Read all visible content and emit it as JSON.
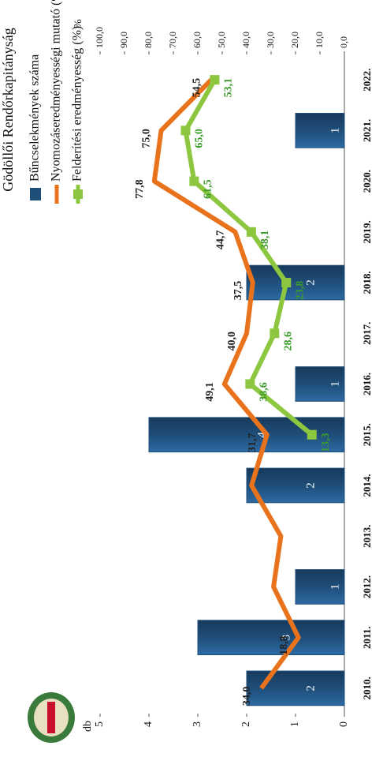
{
  "chart_data": {
    "type": "bar-line",
    "title": "Gödöllői Rendőrkapitányság",
    "categories": [
      "2010.",
      "2011.",
      "2012.",
      "2013.",
      "2014.",
      "2015.",
      "2016.",
      "2017.",
      "2018.",
      "2019.",
      "2020.",
      "2021.",
      "2022."
    ],
    "y_label": "db",
    "y2_label": "%",
    "ylim": [
      0,
      5
    ],
    "yticks": [
      0,
      1,
      2,
      3,
      4,
      5
    ],
    "y2lim": [
      0,
      100
    ],
    "y2ticks": [
      {
        "value": 0,
        "label": "0,0"
      },
      {
        "value": 10,
        "label": "10,0"
      },
      {
        "value": 20,
        "label": "20,0"
      },
      {
        "value": 30,
        "label": "30,0"
      },
      {
        "value": 40,
        "label": "40,0"
      },
      {
        "value": 50,
        "label": "50,0"
      },
      {
        "value": 60,
        "label": "60,0"
      },
      {
        "value": 70,
        "label": "70,0"
      },
      {
        "value": 80,
        "label": "80,0"
      },
      {
        "value": 90,
        "label": "90,0"
      },
      {
        "value": 100,
        "label": "100,0"
      }
    ],
    "series": [
      {
        "name": "Bűncselekmények száma",
        "type": "bar",
        "color": "#1f4e79",
        "values": [
          2,
          3,
          1,
          null,
          2,
          4,
          1,
          null,
          2,
          null,
          null,
          1,
          null
        ]
      },
      {
        "name": "Nyomozáseredményességi mutató (%)",
        "type": "line",
        "axis": "y2",
        "color": "#e8731c",
        "values": [
          34.0,
          18.8,
          29,
          26,
          38,
          31.7,
          49.1,
          40.0,
          37.5,
          44.7,
          77.8,
          75.0,
          54.5
        ],
        "value_labels": [
          "34,0",
          "18,8",
          null,
          null,
          null,
          "31,7",
          "49,1",
          "40,0",
          "37,5",
          "44,7",
          "77,8",
          "75,0",
          "54,5"
        ]
      },
      {
        "name": "Felderítési eredményesség (%)",
        "type": "line",
        "axis": "y2",
        "color": "#8dc63f",
        "values": [
          null,
          null,
          null,
          null,
          null,
          13.3,
          38.6,
          28.6,
          23.8,
          38.1,
          61.5,
          65.0,
          53.1
        ],
        "value_labels": [
          null,
          null,
          null,
          null,
          null,
          "13,3",
          "38,6",
          "28,6",
          "23,8",
          "38,1",
          "61,5",
          "65,0",
          "53,1"
        ]
      }
    ]
  }
}
